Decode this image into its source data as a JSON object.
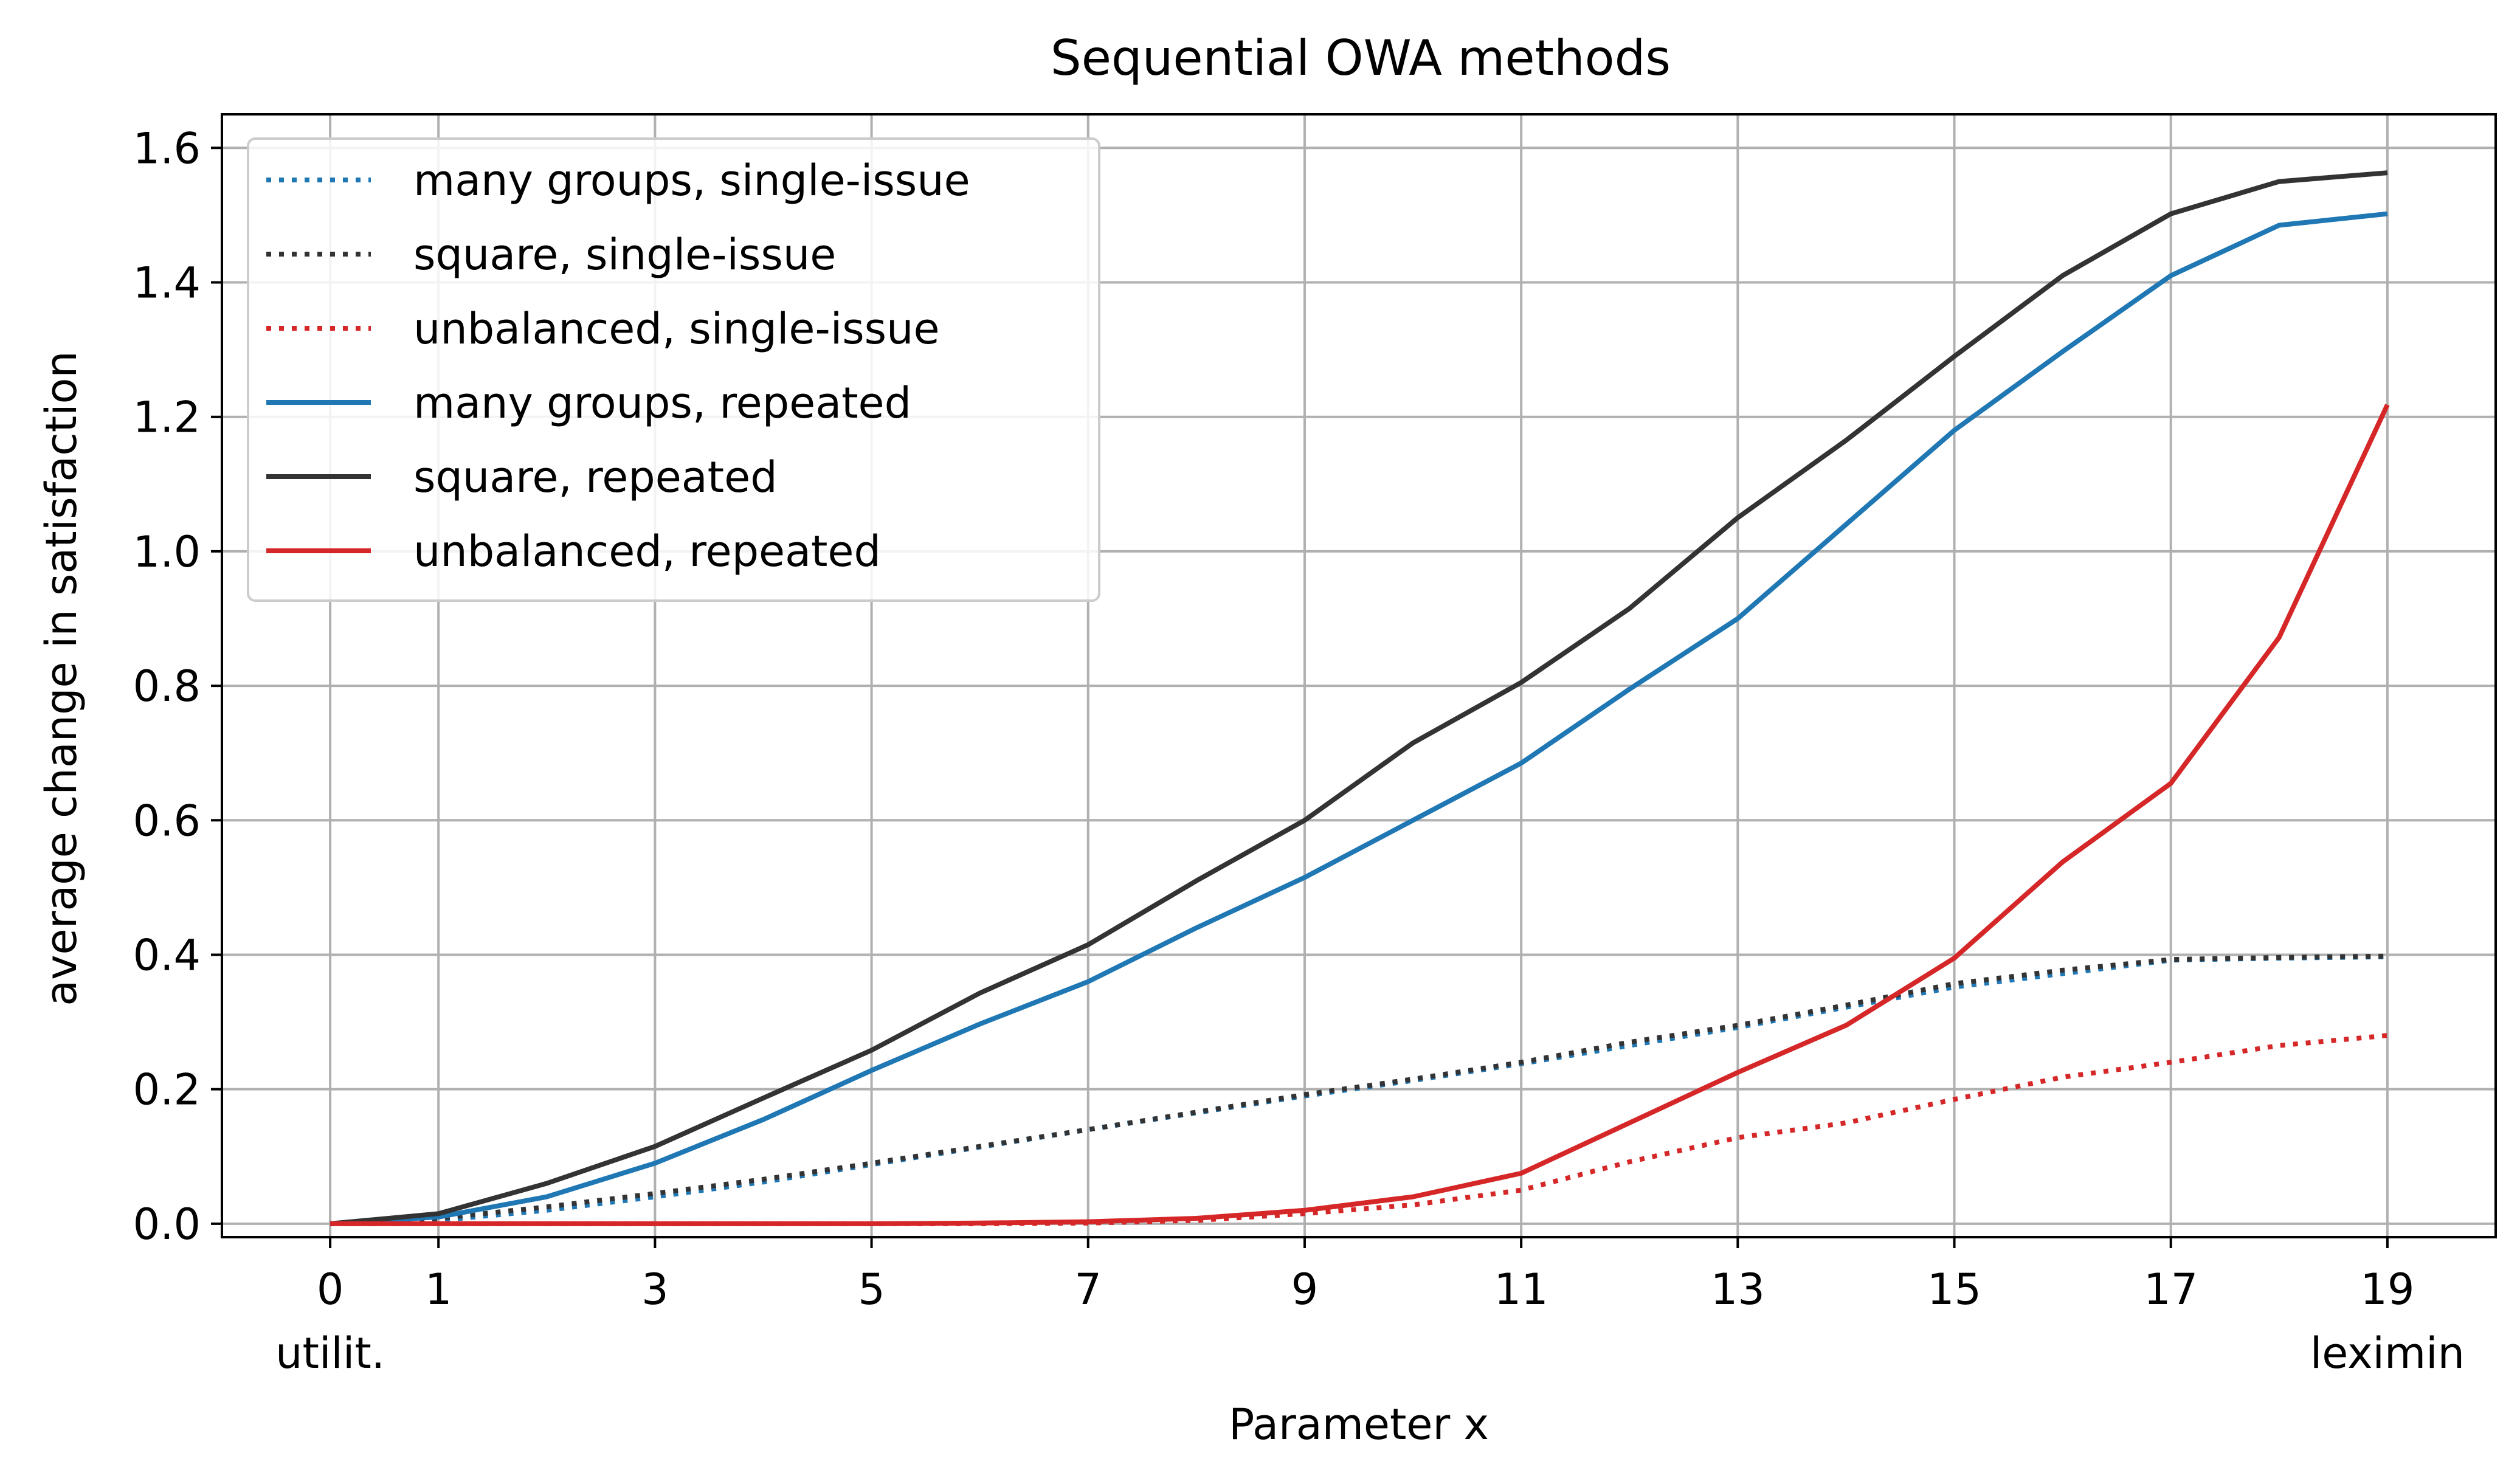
{
  "chart_data": {
    "type": "line",
    "title": "Sequential OWA methods",
    "xlabel": "Parameter x",
    "ylabel": "average change in satisfaction",
    "xlim": [
      -1,
      20
    ],
    "ylim": [
      -0.02,
      1.65
    ],
    "grid": true,
    "legend_position": "top-left",
    "x": [
      0,
      1,
      2,
      3,
      4,
      5,
      6,
      7,
      8,
      9,
      10,
      11,
      12,
      13,
      14,
      15,
      16,
      17,
      18,
      19
    ],
    "x_ticks": [
      {
        "value": 0,
        "label": "0",
        "sublabel": "utilit."
      },
      {
        "value": 1,
        "label": "1",
        "sublabel": ""
      },
      {
        "value": 3,
        "label": "3",
        "sublabel": ""
      },
      {
        "value": 5,
        "label": "5",
        "sublabel": ""
      },
      {
        "value": 7,
        "label": "7",
        "sublabel": ""
      },
      {
        "value": 9,
        "label": "9",
        "sublabel": ""
      },
      {
        "value": 11,
        "label": "11",
        "sublabel": ""
      },
      {
        "value": 13,
        "label": "13",
        "sublabel": ""
      },
      {
        "value": 15,
        "label": "15",
        "sublabel": ""
      },
      {
        "value": 17,
        "label": "17",
        "sublabel": ""
      },
      {
        "value": 19,
        "label": "19",
        "sublabel": "leximin"
      }
    ],
    "y_ticks": [
      {
        "value": 0.0,
        "label": "0.0"
      },
      {
        "value": 0.2,
        "label": "0.2"
      },
      {
        "value": 0.4,
        "label": "0.4"
      },
      {
        "value": 0.6,
        "label": "0.6"
      },
      {
        "value": 0.8,
        "label": "0.8"
      },
      {
        "value": 1.0,
        "label": "1.0"
      },
      {
        "value": 1.2,
        "label": "1.2"
      },
      {
        "value": 1.4,
        "label": "1.4"
      },
      {
        "value": 1.6,
        "label": "1.6"
      }
    ],
    "series": [
      {
        "name": "many groups, single-issue",
        "color": "#1f77b4",
        "style": "dotted",
        "values": [
          0.0,
          0.005,
          0.02,
          0.04,
          0.062,
          0.088,
          0.114,
          0.14,
          0.165,
          0.19,
          0.213,
          0.238,
          0.265,
          0.292,
          0.322,
          0.352,
          0.372,
          0.392,
          0.395,
          0.397
        ]
      },
      {
        "name": "square, single-issue",
        "color": "#333333",
        "style": "dotted",
        "values": [
          0.0,
          0.008,
          0.025,
          0.045,
          0.066,
          0.09,
          0.115,
          0.14,
          0.166,
          0.192,
          0.215,
          0.24,
          0.27,
          0.295,
          0.325,
          0.357,
          0.377,
          0.393,
          0.396,
          0.398
        ]
      },
      {
        "name": "unbalanced, single-issue",
        "color": "#d62728",
        "style": "dotted",
        "values": [
          0.0,
          0.0,
          0.0,
          0.0,
          0.0,
          0.0,
          0.0,
          0.001,
          0.005,
          0.015,
          0.028,
          0.05,
          0.092,
          0.128,
          0.15,
          0.185,
          0.218,
          0.24,
          0.265,
          0.28
        ]
      },
      {
        "name": "many groups, repeated",
        "color": "#1f77b4",
        "style": "solid",
        "values": [
          0.0,
          0.01,
          0.04,
          0.09,
          0.155,
          0.228,
          0.297,
          0.36,
          0.44,
          0.515,
          0.6,
          0.685,
          0.795,
          0.9,
          1.04,
          1.18,
          1.297,
          1.41,
          1.485,
          1.502
        ]
      },
      {
        "name": "square, repeated",
        "color": "#333333",
        "style": "solid",
        "values": [
          0.0,
          0.015,
          0.06,
          0.115,
          0.187,
          0.258,
          0.343,
          0.415,
          0.51,
          0.6,
          0.715,
          0.805,
          0.915,
          1.05,
          1.165,
          1.29,
          1.41,
          1.502,
          1.55,
          1.563
        ]
      },
      {
        "name": "unbalanced, repeated",
        "color": "#d62728",
        "style": "solid",
        "values": [
          0.0,
          0.0,
          0.0,
          0.0,
          0.0,
          0.0,
          0.001,
          0.003,
          0.008,
          0.02,
          0.04,
          0.075,
          0.15,
          0.225,
          0.295,
          0.395,
          0.538,
          0.655,
          0.872,
          1.218
        ]
      }
    ]
  }
}
